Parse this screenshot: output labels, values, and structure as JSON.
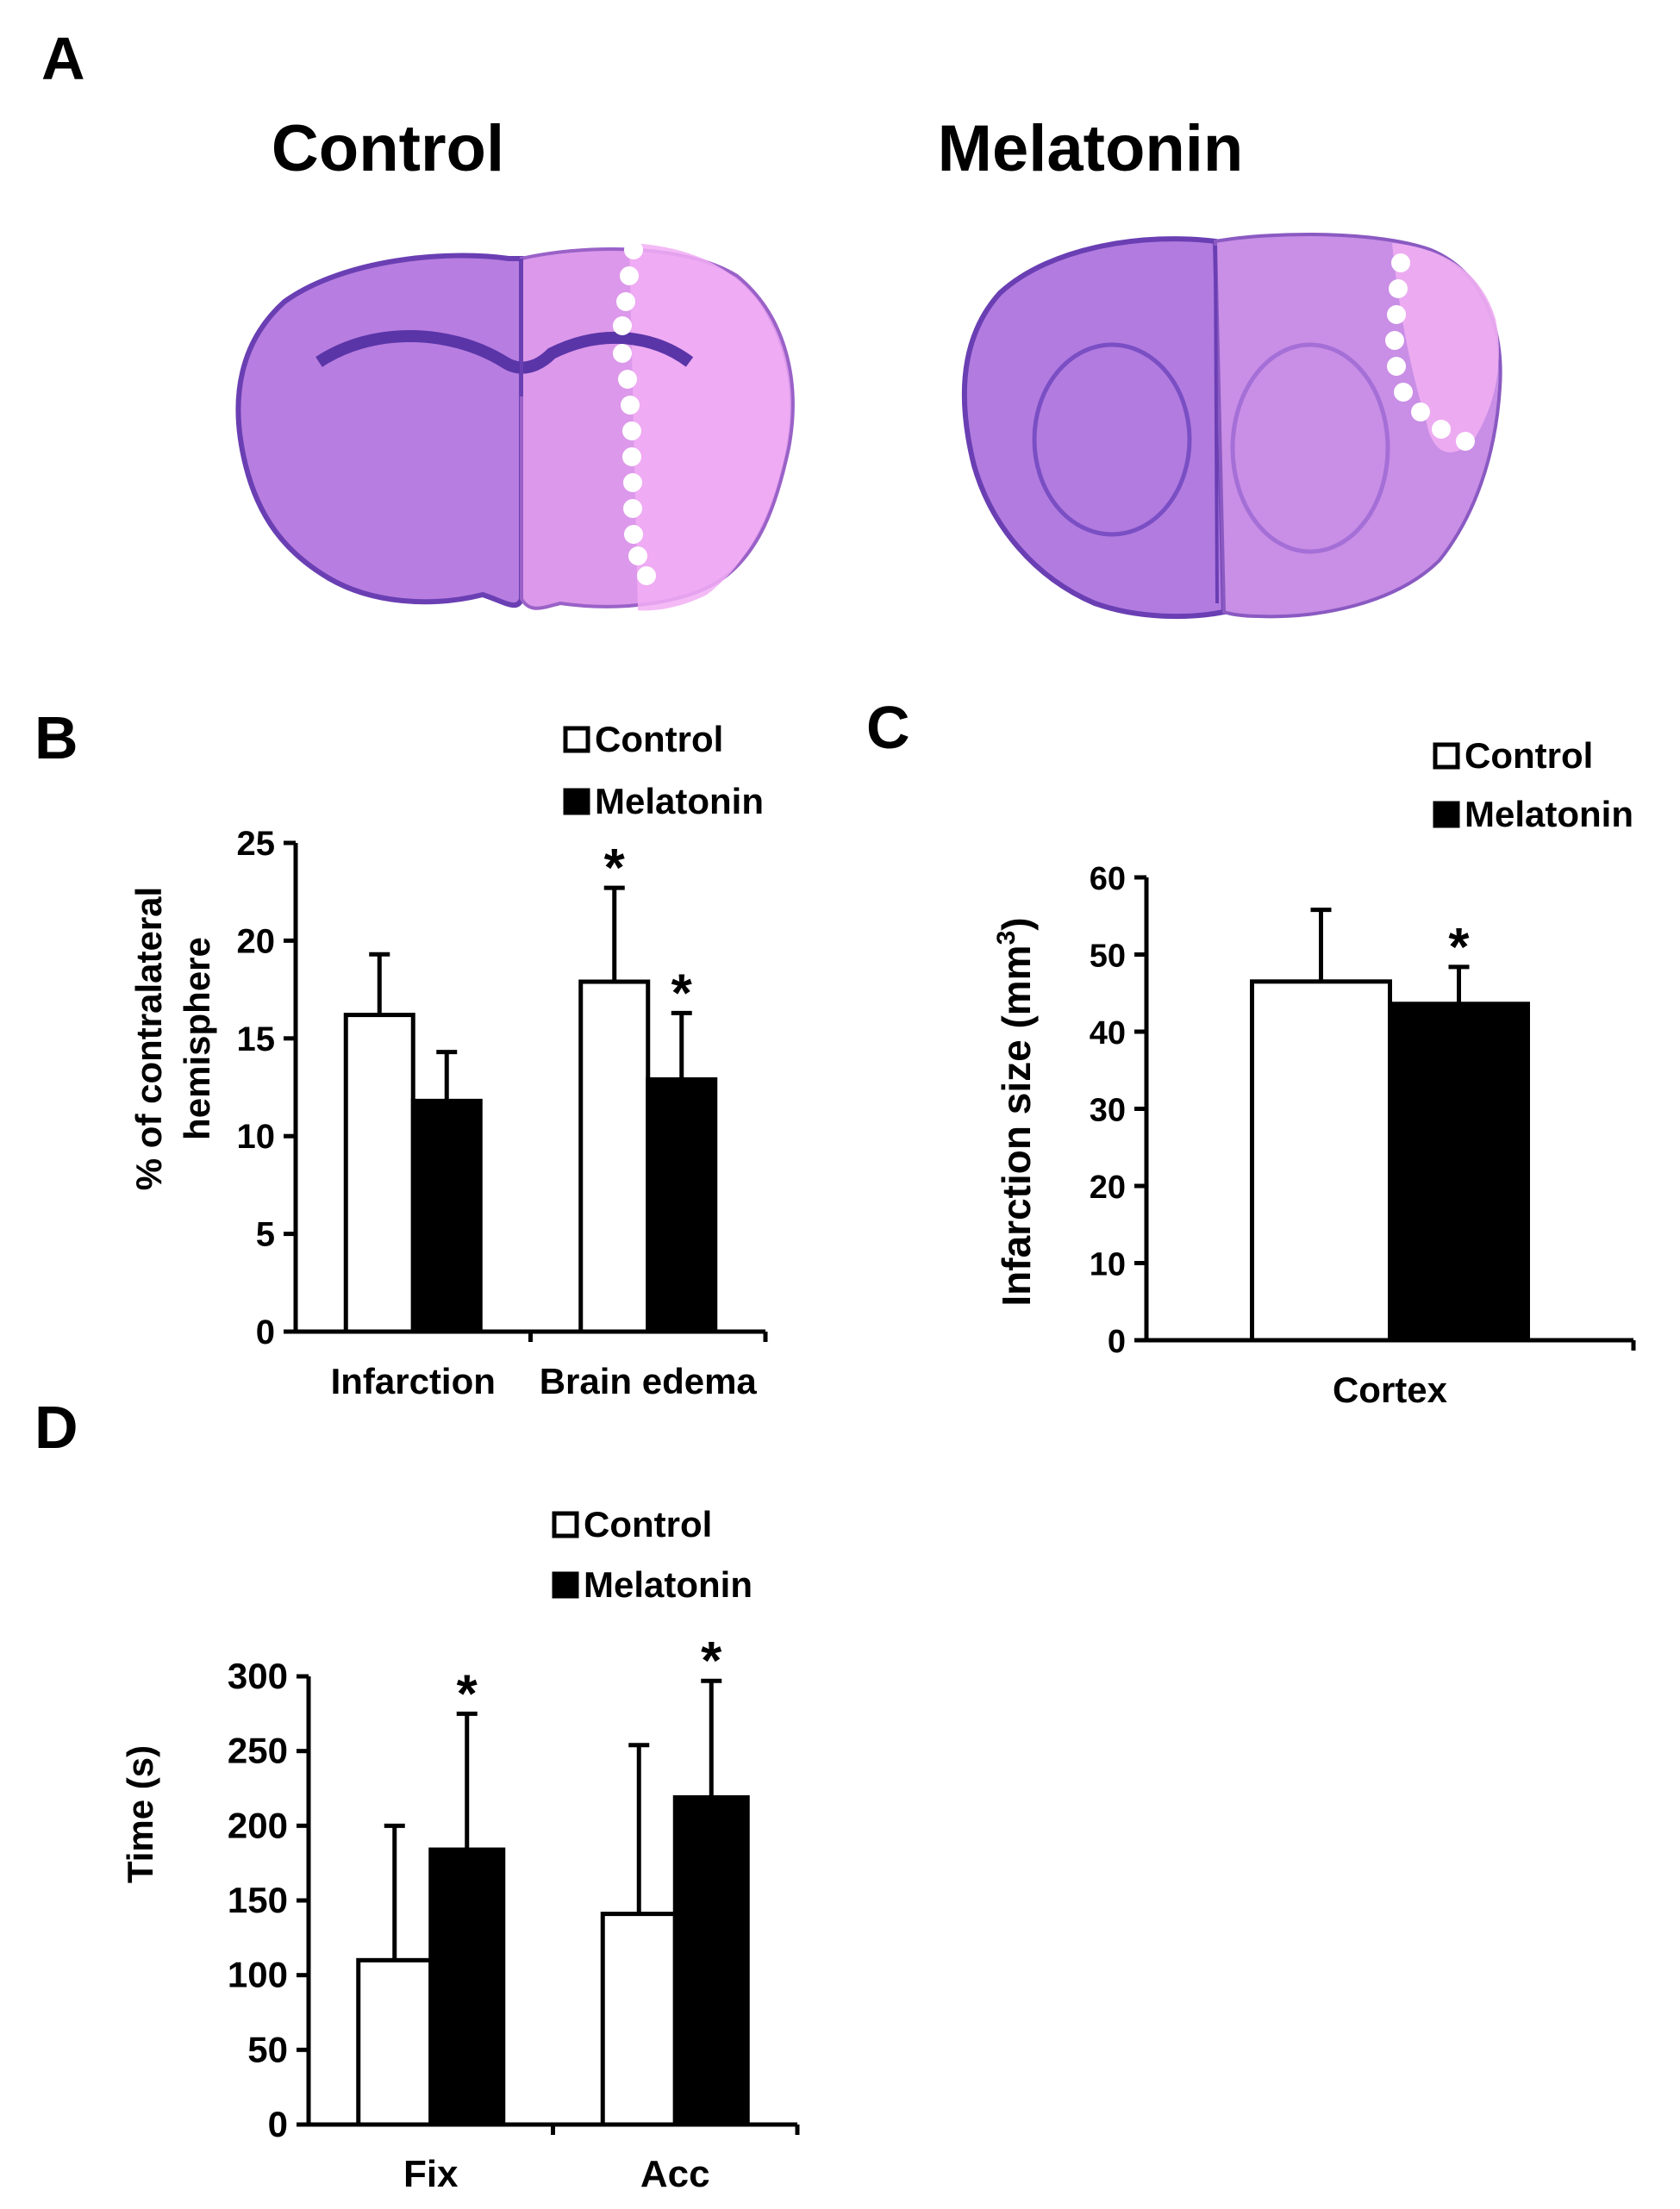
{
  "colors": {
    "control": "#ffffff",
    "melatonin": "#000000",
    "stain": "#c98ee6",
    "stain_dark": "#7a4fc4"
  },
  "panelA": {
    "letter": "A",
    "control_label": "Control",
    "melatonin_label": "Melatonin"
  },
  "chart_data": [
    {
      "panel": "B",
      "type": "bar",
      "categories": [
        "Infarction",
        "Brain edema"
      ],
      "series": [
        {
          "name": "Control",
          "values": [
            16.2,
            17.9
          ],
          "errors": [
            3.1,
            4.8
          ]
        },
        {
          "name": "Melatonin",
          "values": [
            11.8,
            12.9
          ],
          "errors": [
            2.5,
            3.4
          ]
        }
      ],
      "significance": [
        [
          "",
          "*"
        ],
        [
          "",
          "*"
        ]
      ],
      "ylabel": [
        "% of contralateral",
        "hemisphere"
      ],
      "ylim": [
        0,
        25
      ],
      "yticks": [
        "0",
        "5",
        "10",
        "15",
        "20",
        "25"
      ],
      "legend": [
        "Control",
        "Melatonin"
      ],
      "legend_position": "top-right"
    },
    {
      "panel": "C",
      "type": "bar",
      "categories": [
        "Cortex"
      ],
      "series": [
        {
          "name": "Control",
          "values": [
            46.5
          ],
          "errors": [
            9.3
          ]
        },
        {
          "name": "Melatonin",
          "values": [
            43.6
          ],
          "errors": [
            4.8
          ]
        }
      ],
      "significance": [
        [
          ""
        ],
        [
          "*"
        ]
      ],
      "ylabel": [
        "Infarction size (mm",
        "3",
        ")"
      ],
      "ylim": [
        0,
        60
      ],
      "yticks": [
        "0",
        "10",
        "20",
        "30",
        "40",
        "50",
        "60"
      ],
      "legend": [
        "Control",
        "Melatonin"
      ],
      "legend_position": "top-right"
    },
    {
      "panel": "D",
      "type": "bar",
      "categories": [
        "Fix",
        "Acc"
      ],
      "series": [
        {
          "name": "Control",
          "values": [
            110,
            141
          ],
          "errors": [
            90,
            113
          ]
        },
        {
          "name": "Melatonin",
          "values": [
            184,
            219
          ],
          "errors": [
            91,
            78
          ]
        }
      ],
      "significance": [
        [
          "",
          ""
        ],
        [
          "*",
          "*"
        ]
      ],
      "ylabel": [
        "Time (s)"
      ],
      "ylim": [
        0,
        300
      ],
      "yticks": [
        "0",
        "50",
        "100",
        "150",
        "200",
        "250",
        "300"
      ],
      "legend": [
        "Control",
        "Melatonin"
      ],
      "legend_position": "top-left"
    }
  ]
}
